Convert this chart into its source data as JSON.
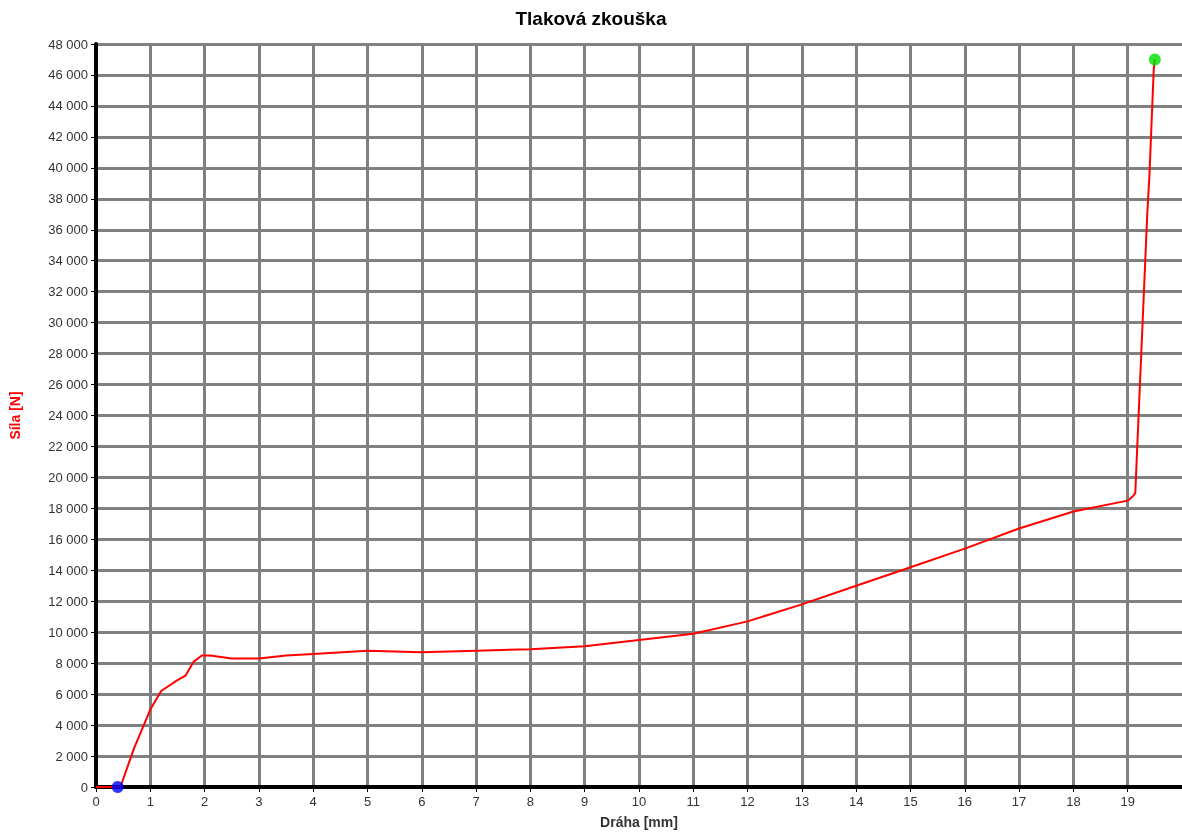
{
  "chart_data": {
    "type": "line",
    "title": "Tlaková zkouška",
    "xlabel": "Dráha [mm]",
    "ylabel": "Síla [N]",
    "grid": true,
    "xlim": [
      0,
      20
    ],
    "xticks": [
      0,
      1,
      2,
      3,
      4,
      5,
      6,
      7,
      8,
      9,
      10,
      11,
      12,
      13,
      14,
      15,
      16,
      17,
      18,
      19
    ],
    "ylim": [
      0,
      48000
    ],
    "yticks": [
      0,
      {
        "value": 2000,
        "label": "2 000"
      },
      {
        "value": 4000,
        "label": "4 000"
      },
      {
        "value": 6000,
        "label": "6 000"
      },
      {
        "value": 8000,
        "label": "8 000"
      },
      {
        "value": 10000,
        "label": "10 000"
      },
      {
        "value": 12000,
        "label": "12 000"
      },
      {
        "value": 14000,
        "label": "14 000"
      },
      {
        "value": 16000,
        "label": "16 000"
      },
      {
        "value": 18000,
        "label": "18 000"
      },
      {
        "value": 20000,
        "label": "20 000"
      },
      {
        "value": 22000,
        "label": "22 000"
      },
      {
        "value": 24000,
        "label": "24 000"
      },
      {
        "value": 26000,
        "label": "26 000"
      },
      {
        "value": 28000,
        "label": "28 000"
      },
      {
        "value": 30000,
        "label": "30 000"
      },
      {
        "value": 32000,
        "label": "32 000"
      },
      {
        "value": 34000,
        "label": "34 000"
      },
      {
        "value": 36000,
        "label": "36 000"
      },
      {
        "value": 38000,
        "label": "38 000"
      },
      {
        "value": 40000,
        "label": "40 000"
      },
      {
        "value": 42000,
        "label": "42 000"
      },
      {
        "value": 44000,
        "label": "44 000"
      },
      {
        "value": 46000,
        "label": "46 000"
      },
      {
        "value": 48000,
        "label": "48 000"
      }
    ],
    "series": [
      {
        "marker": "none",
        "color": "#ff0000",
        "x": [
          0,
          0.4,
          0.45,
          0.7,
          1.0,
          1.2,
          1.5,
          1.65,
          1.8,
          1.95,
          2.1,
          2.5,
          3,
          3.5,
          4,
          5,
          6,
          7,
          8,
          9,
          10,
          11,
          12,
          13,
          14,
          15,
          16,
          17,
          18,
          19,
          19.1,
          19.14,
          19.17,
          19.36,
          19.4,
          19.48,
          19.5
        ],
        "values": [
          0,
          0,
          0,
          2500,
          5000,
          6200,
          6900,
          7200,
          8100,
          8500,
          8500,
          8300,
          8300,
          8500,
          8600,
          8800,
          8700,
          8800,
          8900,
          9100,
          9500,
          9900,
          10700,
          11800,
          13000,
          14200,
          15400,
          16700,
          17800,
          18500,
          18800,
          19000,
          21500,
          37000,
          39500,
          46400,
          47000
        ]
      },
      {
        "type": "scatter",
        "marker": "circle",
        "color": "#0000ff",
        "x": [
          0.4
        ],
        "values": [
          0
        ]
      },
      {
        "type": "scatter",
        "marker": "circle",
        "color": "#00e000",
        "x": [
          19.5
        ],
        "values": [
          47000
        ]
      }
    ]
  }
}
